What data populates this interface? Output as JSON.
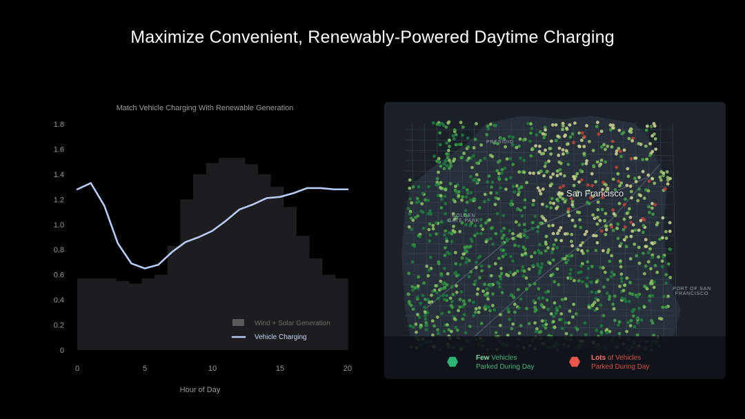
{
  "title": "Maximize Convenient, Renewably-Powered Daytime Charging",
  "chart_data": {
    "type": "area",
    "title": "Match Vehicle Charging With Renewable Generation",
    "xlabel": "Hour of Day",
    "ylabel": "",
    "xlim": [
      0,
      20
    ],
    "ylim": [
      0,
      1.8
    ],
    "xticks": [
      "0",
      "5",
      "10",
      "15",
      "20"
    ],
    "yticks": [
      "0",
      "0.2",
      "0.4",
      "0.6",
      "0.8",
      "1.0",
      "1.2",
      "1.4",
      "1.6",
      "1.8"
    ],
    "grid": false,
    "legend": "bottom-right",
    "series": [
      {
        "name": "Wind + Solar Generation",
        "style": "step-area",
        "color": "#1d1d1f",
        "x": [
          0,
          1,
          2,
          3,
          4,
          5,
          6,
          7,
          8,
          9,
          10,
          11,
          12,
          13,
          14,
          15,
          16,
          17,
          18,
          19,
          20
        ],
        "values": [
          0.57,
          0.57,
          0.57,
          0.55,
          0.53,
          0.57,
          0.6,
          0.83,
          1.2,
          1.4,
          1.49,
          1.53,
          1.53,
          1.48,
          1.4,
          1.3,
          1.14,
          0.91,
          0.73,
          0.6,
          0.57
        ]
      },
      {
        "name": "Vehicle Charging",
        "style": "line",
        "color": "#b9cdfa",
        "x": [
          0,
          1,
          2,
          3,
          4,
          5,
          6,
          7,
          8,
          9,
          10,
          11,
          12,
          13,
          14,
          15,
          16,
          17,
          18,
          19,
          20
        ],
        "values": [
          1.28,
          1.33,
          1.15,
          0.85,
          0.69,
          0.65,
          0.68,
          0.78,
          0.86,
          0.9,
          0.95,
          1.03,
          1.12,
          1.16,
          1.21,
          1.22,
          1.25,
          1.29,
          1.29,
          1.28,
          1.28
        ]
      }
    ]
  },
  "map": {
    "city": "San Francisco",
    "areas": [
      "PRESIDIO",
      "GOLDEN\nGATE PARK",
      "PORT OF SAN\nFRANCISCO"
    ],
    "legend": [
      {
        "bold": "Few",
        "rest": " Vehicles",
        "line2": "Parked During Day",
        "color": "#2bb673"
      },
      {
        "bold": "Lots",
        "rest": " of Vehicles",
        "line2": "Parked During Day",
        "color": "#e8574a"
      }
    ]
  }
}
